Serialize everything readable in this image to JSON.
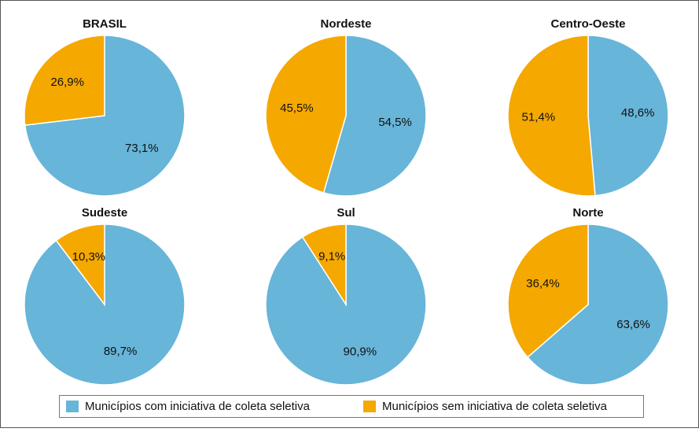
{
  "legend": [
    {
      "name": "Municípios com iniciativa de coleta seletiva",
      "color": "#67b5d9"
    },
    {
      "name": "Municípios sem iniciativa de coleta seletiva",
      "color": "#f5a800"
    }
  ],
  "chart_data": [
    {
      "type": "pie",
      "title": "BRASIL",
      "values": [
        73.1,
        26.9
      ],
      "value_labels": [
        "73,1%",
        "26,9%"
      ]
    },
    {
      "type": "pie",
      "title": "Nordeste",
      "values": [
        54.5,
        45.5
      ],
      "value_labels": [
        "54,5%",
        "45,5%"
      ]
    },
    {
      "type": "pie",
      "title": "Centro-Oeste",
      "values": [
        48.6,
        51.4
      ],
      "value_labels": [
        "48,6%",
        "51,4%"
      ]
    },
    {
      "type": "pie",
      "title": "Sudeste",
      "values": [
        89.7,
        10.3
      ],
      "value_labels": [
        "89,7%",
        "10,3%"
      ]
    },
    {
      "type": "pie",
      "title": "Sul",
      "values": [
        90.9,
        9.1
      ],
      "value_labels": [
        "90,9%",
        "9,1%"
      ]
    },
    {
      "type": "pie",
      "title": "Norte",
      "values": [
        63.6,
        36.4
      ],
      "value_labels": [
        "63,6%",
        "36,4%"
      ]
    }
  ]
}
